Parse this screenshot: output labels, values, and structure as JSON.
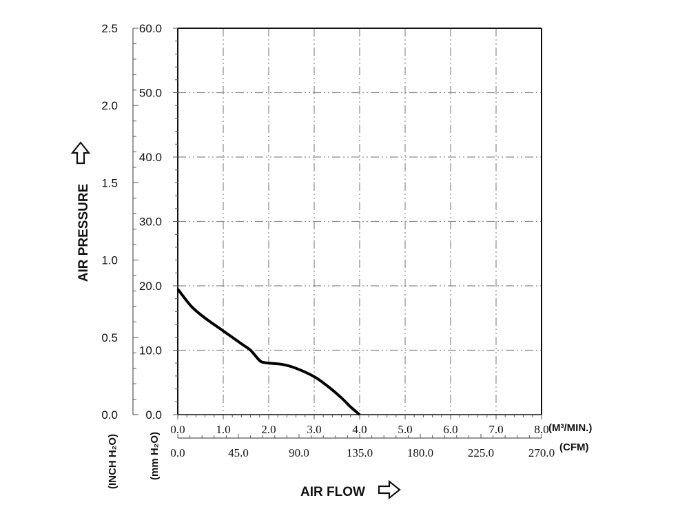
{
  "chart_data": {
    "type": "line",
    "x_title": "AIR FLOW",
    "y_title": "AIR PRESSURE",
    "x_primary": {
      "unit": "(M³/MIN.)",
      "range": [
        0,
        8
      ],
      "ticks": [
        "0.0",
        "1.0",
        "2.0",
        "3.0",
        "4.0",
        "5.0",
        "6.0",
        "7.0",
        "8.0"
      ]
    },
    "x_secondary": {
      "unit": "(CFM)",
      "range": [
        0,
        270
      ],
      "ticks": [
        "0.0",
        "45.0",
        "90.0",
        "135.0",
        "180.0",
        "225.0",
        "270.0"
      ]
    },
    "y_primary": {
      "unit": "(mm H₂O)",
      "range": [
        0,
        60
      ],
      "ticks": [
        "0.0",
        "10.0",
        "20.0",
        "30.0",
        "40.0",
        "50.0",
        "60.0"
      ]
    },
    "y_secondary": {
      "unit": "(INCH H₂O)",
      "range": [
        0,
        2.5
      ],
      "ticks": [
        "0.0",
        "0.5",
        "1.0",
        "1.5",
        "2.0",
        "2.5"
      ]
    },
    "grid": true,
    "grid_style": "dash-dot",
    "series": [
      {
        "color": "#000000",
        "x": [
          0.0,
          0.3,
          0.6,
          1.0,
          1.4,
          1.6,
          1.8,
          1.9,
          2.0,
          2.3,
          2.6,
          3.0,
          3.3,
          3.6,
          3.8,
          4.0
        ],
        "y": [
          19.5,
          16.8,
          15.0,
          13.0,
          11.0,
          10.0,
          8.4,
          8.1,
          8.0,
          7.8,
          7.2,
          5.9,
          4.4,
          2.6,
          1.2,
          0.0
        ]
      }
    ]
  }
}
